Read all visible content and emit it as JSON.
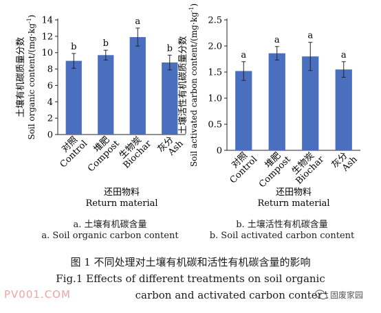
{
  "chart_data": [
    {
      "type": "bar",
      "categories": [
        {
          "zh": "对照",
          "en": "Control"
        },
        {
          "zh": "堆肥",
          "en": "Compost"
        },
        {
          "zh": "生物炭",
          "en": "Biochar"
        },
        {
          "zh": "灰分",
          "en": "Ash"
        }
      ],
      "values": [
        9.0,
        9.7,
        11.9,
        8.8
      ],
      "errors": [
        0.9,
        0.6,
        1.1,
        0.9
      ],
      "letters": [
        "b",
        "b",
        "a",
        "b"
      ],
      "ylim": [
        0,
        14
      ],
      "yticks": [
        0,
        2,
        4,
        6,
        8,
        10,
        12,
        14
      ],
      "ytick_labels": [
        "0",
        "2",
        "4",
        "6",
        "8",
        "10",
        "12",
        "14"
      ],
      "ylabel_zh": "土壤有机碳质量分数",
      "ylabel_en": "Soil organic content/(mg·kg",
      "ylabel_sup": "-1",
      "ylabel_end": ")",
      "xlabel_zh": "还田物料",
      "xlabel_en": "Return material",
      "bar_color": "#4a6fbf"
    },
    {
      "type": "bar",
      "categories": [
        {
          "zh": "对照",
          "en": "Control"
        },
        {
          "zh": "堆肥",
          "en": "Compost"
        },
        {
          "zh": "生物炭",
          "en": "Biochar"
        },
        {
          "zh": "灰分",
          "en": "Ash"
        }
      ],
      "values": [
        1.52,
        1.86,
        1.8,
        1.55
      ],
      "errors": [
        0.18,
        0.13,
        0.27,
        0.15
      ],
      "letters": [
        "a",
        "a",
        "a",
        "a"
      ],
      "ylim": [
        0,
        2.5
      ],
      "yticks": [
        0,
        0.5,
        1.0,
        1.5,
        2.0,
        2.5
      ],
      "ytick_labels": [
        "0",
        "0.5",
        "1.0",
        "1.5",
        "2.0",
        "2.5"
      ],
      "ylabel_zh": "土壤活性有机碳质量分数",
      "ylabel_en": "Soil activated carbon content/(mg·kg",
      "ylabel_sup": "-1",
      "ylabel_end": ")",
      "xlabel_zh": "还田物料",
      "xlabel_en": "Return material",
      "bar_color": "#4a6fbf"
    }
  ],
  "captions": {
    "a_zh": "a. 土壤有机碳含量",
    "a_en": "a. Soil organic carbon content",
    "b_zh": "b. 土壤活性有机碳含量",
    "b_en": "b. Soil activated carbon content"
  },
  "figure": {
    "title_zh": "图 1    不同处理对土壤有机碳和活性有机碳含量的影响",
    "title_en_1": "Fig.1    Effects of different treatments on soil organic",
    "title_en_2": "carbon and activated carbon content"
  },
  "watermark": "PV001.COM",
  "wechat_label": "固废家园",
  "wechat_icon": "wechat-icon"
}
